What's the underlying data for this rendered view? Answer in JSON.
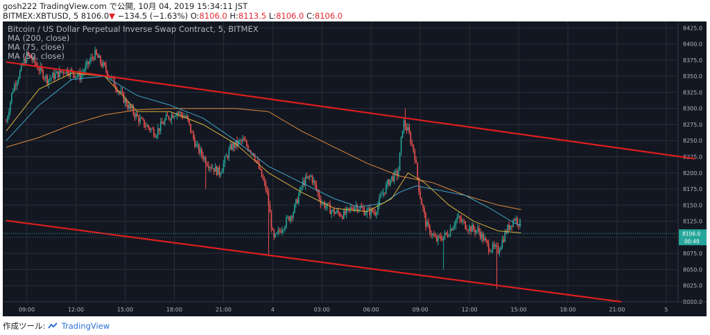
{
  "header": {
    "author": "gosh222",
    "published": "TradingView.com で公開, 10月 04, 2019 15:34:11 JST",
    "symbol": "BITMEX:XBTUSD, 5",
    "last": "8106.0",
    "arrow": "▼",
    "change": "−134.5 (−1.63%)",
    "o_label": "O:",
    "o": "8106.0",
    "h_label": "H:",
    "h": "8113.5",
    "l_label": "L:",
    "l": "8106.0",
    "c_label": "C:",
    "c": "8106.0"
  },
  "legend": {
    "title": "Bitcoin / US Dollar Perpetual Inverse Swap Contract, 5, BITMEX",
    "ma1": "MA (200, close)",
    "ma2": "MA (75, close)",
    "ma3": "MA (50, close)"
  },
  "footer": {
    "prefix": "作成ツール:",
    "brand": "TradingView"
  },
  "colors": {
    "background": "#131722",
    "grid": "#2a2e39",
    "up": "#26a69a",
    "down": "#ef5350",
    "ma200": "#e08a3c",
    "ma75": "#3fa7c9",
    "ma50": "#d9b23a",
    "trendline": "#e01e1e",
    "price_label": "#26a69a"
  },
  "chart_data": {
    "type": "candlestick",
    "interval": "5",
    "ylim": [
      8000,
      8435
    ],
    "y_ticks": [
      "8000.0",
      "8025.0",
      "8050.0",
      "8075.0",
      "8100.0",
      "8125.0",
      "8150.0",
      "8175.0",
      "8200.0",
      "8225.0",
      "8250.0",
      "8275.0",
      "8300.0",
      "8325.0",
      "8350.0",
      "8375.0",
      "8400.0",
      "8425.0"
    ],
    "x_ticks": [
      {
        "t": 1.25,
        "label": "09:00"
      },
      {
        "t": 4.25,
        "label": "12:00"
      },
      {
        "t": 7.25,
        "label": "15:00"
      },
      {
        "t": 10.25,
        "label": "18:00"
      },
      {
        "t": 13.25,
        "label": "21:00"
      },
      {
        "t": 16.25,
        "label": "4"
      },
      {
        "t": 19.25,
        "label": "03:00"
      },
      {
        "t": 22.25,
        "label": "06:00"
      },
      {
        "t": 25.25,
        "label": "09:00"
      },
      {
        "t": 28.25,
        "label": "12:00"
      },
      {
        "t": 31.25,
        "label": "15:00"
      },
      {
        "t": 34.25,
        "label": "18:00"
      },
      {
        "t": 37.25,
        "label": "21:00"
      },
      {
        "t": 40.25,
        "label": "5"
      }
    ],
    "price_keypoints": [
      [
        0,
        8280
      ],
      [
        0.4,
        8330
      ],
      [
        1.3,
        8385
      ],
      [
        2.5,
        8345
      ],
      [
        3.6,
        8360
      ],
      [
        4.5,
        8350
      ],
      [
        5.4,
        8385
      ],
      [
        6.2,
        8355
      ],
      [
        7.4,
        8305
      ],
      [
        8.2,
        8280
      ],
      [
        9.1,
        8262
      ],
      [
        9.8,
        8285
      ],
      [
        10.4,
        8295
      ],
      [
        11.0,
        8285
      ],
      [
        11.6,
        8240
      ],
      [
        12.3,
        8215
      ],
      [
        13.0,
        8200
      ],
      [
        13.7,
        8240
      ],
      [
        14.4,
        8250
      ],
      [
        15.1,
        8230
      ],
      [
        15.9,
        8170
      ],
      [
        16.3,
        8095
      ],
      [
        16.8,
        8115
      ],
      [
        17.5,
        8140
      ],
      [
        18.1,
        8185
      ],
      [
        18.6,
        8195
      ],
      [
        19.2,
        8155
      ],
      [
        19.9,
        8140
      ],
      [
        20.6,
        8135
      ],
      [
        21.3,
        8150
      ],
      [
        21.9,
        8140
      ],
      [
        22.5,
        8140
      ],
      [
        22.9,
        8165
      ],
      [
        23.4,
        8190
      ],
      [
        23.9,
        8200
      ],
      [
        24.2,
        8280
      ],
      [
        24.5,
        8265
      ],
      [
        24.9,
        8230
      ],
      [
        25.2,
        8170
      ],
      [
        25.6,
        8120
      ],
      [
        26.2,
        8095
      ],
      [
        26.9,
        8105
      ],
      [
        27.5,
        8130
      ],
      [
        28.2,
        8115
      ],
      [
        28.8,
        8110
      ],
      [
        29.4,
        8085
      ],
      [
        30.0,
        8080
      ],
      [
        30.5,
        8110
      ],
      [
        31.0,
        8130
      ],
      [
        31.4,
        8120
      ]
    ],
    "spikes": [
      {
        "t": 16.0,
        "low": 8070
      },
      {
        "t": 24.3,
        "high": 8300
      },
      {
        "t": 26.7,
        "low": 8050
      },
      {
        "t": 29.9,
        "low": 8020
      },
      {
        "t": 5.5,
        "high": 8385
      },
      {
        "t": 12.2,
        "low": 8175
      }
    ],
    "ma_200": [
      [
        0,
        8240
      ],
      [
        2,
        8255
      ],
      [
        4,
        8275
      ],
      [
        6,
        8290
      ],
      [
        8,
        8298
      ],
      [
        10,
        8300
      ],
      [
        12,
        8300
      ],
      [
        14,
        8300
      ],
      [
        16,
        8295
      ],
      [
        18,
        8265
      ],
      [
        20,
        8240
      ],
      [
        22,
        8215
      ],
      [
        24,
        8195
      ],
      [
        26,
        8185
      ],
      [
        28,
        8165
      ],
      [
        30,
        8150
      ],
      [
        31.4,
        8143
      ]
    ],
    "ma_75": [
      [
        0,
        8250
      ],
      [
        2,
        8305
      ],
      [
        4,
        8345
      ],
      [
        6,
        8350
      ],
      [
        8,
        8320
      ],
      [
        10,
        8305
      ],
      [
        12,
        8285
      ],
      [
        14,
        8250
      ],
      [
        16,
        8210
      ],
      [
        18,
        8185
      ],
      [
        20,
        8160
      ],
      [
        21.5,
        8147
      ],
      [
        23,
        8153
      ],
      [
        24,
        8170
      ],
      [
        25,
        8180
      ],
      [
        26,
        8175
      ],
      [
        28,
        8165
      ],
      [
        29.5,
        8145
      ],
      [
        31,
        8122
      ],
      [
        31.4,
        8118
      ]
    ],
    "ma_50": [
      [
        0,
        8265
      ],
      [
        2,
        8330
      ],
      [
        4,
        8355
      ],
      [
        6,
        8350
      ],
      [
        8,
        8295
      ],
      [
        10,
        8295
      ],
      [
        12,
        8275
      ],
      [
        14,
        8245
      ],
      [
        16,
        8200
      ],
      [
        18,
        8170
      ],
      [
        20,
        8145
      ],
      [
        22,
        8140
      ],
      [
        23.5,
        8160
      ],
      [
        24.5,
        8200
      ],
      [
        25.5,
        8185
      ],
      [
        27,
        8150
      ],
      [
        28.5,
        8125
      ],
      [
        30,
        8110
      ],
      [
        31.4,
        8107
      ]
    ],
    "trendlines": [
      {
        "name": "upper",
        "p1": [
          0,
          8372
        ],
        "p2": [
          42,
          8222
        ]
      },
      {
        "name": "lower",
        "p1": [
          0,
          8126
        ],
        "p2": [
          37.5,
          8000
        ]
      }
    ],
    "last_price": {
      "value": "8106.0",
      "countdown": "00:49",
      "y": 8106
    }
  }
}
